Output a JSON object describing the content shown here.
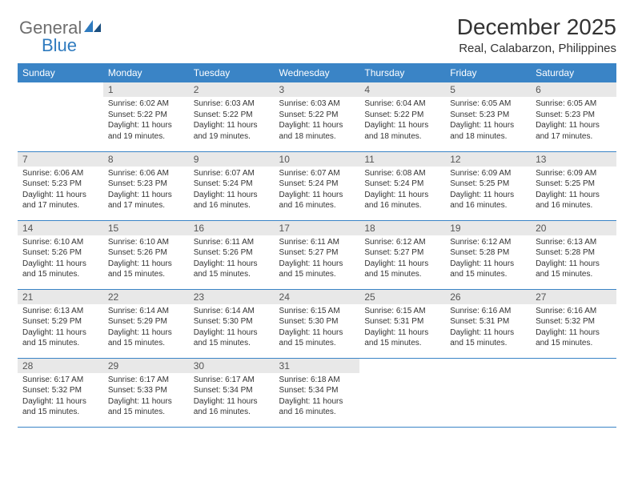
{
  "logo": {
    "general": "General",
    "blue": "Blue"
  },
  "title": "December 2025",
  "location": "Real, Calabarzon, Philippines",
  "colors": {
    "header_bg": "#3a84c6",
    "header_text": "#ffffff",
    "daynum_bg": "#e8e8e8",
    "row_border": "#3a84c6",
    "logo_gray": "#6e6e6e",
    "logo_blue": "#2f7bbf",
    "page_bg": "#ffffff",
    "text": "#333333"
  },
  "typography": {
    "title_fontsize": 28,
    "location_fontsize": 15,
    "weekday_fontsize": 12,
    "daynum_fontsize": 12,
    "cell_fontsize": 10
  },
  "weekdays": [
    "Sunday",
    "Monday",
    "Tuesday",
    "Wednesday",
    "Thursday",
    "Friday",
    "Saturday"
  ],
  "weeks": [
    [
      {
        "n": "",
        "sunrise": "",
        "sunset": "",
        "daylight": ""
      },
      {
        "n": "1",
        "sunrise": "6:02 AM",
        "sunset": "5:22 PM",
        "daylight": "11 hours and 19 minutes."
      },
      {
        "n": "2",
        "sunrise": "6:03 AM",
        "sunset": "5:22 PM",
        "daylight": "11 hours and 19 minutes."
      },
      {
        "n": "3",
        "sunrise": "6:03 AM",
        "sunset": "5:22 PM",
        "daylight": "11 hours and 18 minutes."
      },
      {
        "n": "4",
        "sunrise": "6:04 AM",
        "sunset": "5:22 PM",
        "daylight": "11 hours and 18 minutes."
      },
      {
        "n": "5",
        "sunrise": "6:05 AM",
        "sunset": "5:23 PM",
        "daylight": "11 hours and 18 minutes."
      },
      {
        "n": "6",
        "sunrise": "6:05 AM",
        "sunset": "5:23 PM",
        "daylight": "11 hours and 17 minutes."
      }
    ],
    [
      {
        "n": "7",
        "sunrise": "6:06 AM",
        "sunset": "5:23 PM",
        "daylight": "11 hours and 17 minutes."
      },
      {
        "n": "8",
        "sunrise": "6:06 AM",
        "sunset": "5:23 PM",
        "daylight": "11 hours and 17 minutes."
      },
      {
        "n": "9",
        "sunrise": "6:07 AM",
        "sunset": "5:24 PM",
        "daylight": "11 hours and 16 minutes."
      },
      {
        "n": "10",
        "sunrise": "6:07 AM",
        "sunset": "5:24 PM",
        "daylight": "11 hours and 16 minutes."
      },
      {
        "n": "11",
        "sunrise": "6:08 AM",
        "sunset": "5:24 PM",
        "daylight": "11 hours and 16 minutes."
      },
      {
        "n": "12",
        "sunrise": "6:09 AM",
        "sunset": "5:25 PM",
        "daylight": "11 hours and 16 minutes."
      },
      {
        "n": "13",
        "sunrise": "6:09 AM",
        "sunset": "5:25 PM",
        "daylight": "11 hours and 16 minutes."
      }
    ],
    [
      {
        "n": "14",
        "sunrise": "6:10 AM",
        "sunset": "5:26 PM",
        "daylight": "11 hours and 15 minutes."
      },
      {
        "n": "15",
        "sunrise": "6:10 AM",
        "sunset": "5:26 PM",
        "daylight": "11 hours and 15 minutes."
      },
      {
        "n": "16",
        "sunrise": "6:11 AM",
        "sunset": "5:26 PM",
        "daylight": "11 hours and 15 minutes."
      },
      {
        "n": "17",
        "sunrise": "6:11 AM",
        "sunset": "5:27 PM",
        "daylight": "11 hours and 15 minutes."
      },
      {
        "n": "18",
        "sunrise": "6:12 AM",
        "sunset": "5:27 PM",
        "daylight": "11 hours and 15 minutes."
      },
      {
        "n": "19",
        "sunrise": "6:12 AM",
        "sunset": "5:28 PM",
        "daylight": "11 hours and 15 minutes."
      },
      {
        "n": "20",
        "sunrise": "6:13 AM",
        "sunset": "5:28 PM",
        "daylight": "11 hours and 15 minutes."
      }
    ],
    [
      {
        "n": "21",
        "sunrise": "6:13 AM",
        "sunset": "5:29 PM",
        "daylight": "11 hours and 15 minutes."
      },
      {
        "n": "22",
        "sunrise": "6:14 AM",
        "sunset": "5:29 PM",
        "daylight": "11 hours and 15 minutes."
      },
      {
        "n": "23",
        "sunrise": "6:14 AM",
        "sunset": "5:30 PM",
        "daylight": "11 hours and 15 minutes."
      },
      {
        "n": "24",
        "sunrise": "6:15 AM",
        "sunset": "5:30 PM",
        "daylight": "11 hours and 15 minutes."
      },
      {
        "n": "25",
        "sunrise": "6:15 AM",
        "sunset": "5:31 PM",
        "daylight": "11 hours and 15 minutes."
      },
      {
        "n": "26",
        "sunrise": "6:16 AM",
        "sunset": "5:31 PM",
        "daylight": "11 hours and 15 minutes."
      },
      {
        "n": "27",
        "sunrise": "6:16 AM",
        "sunset": "5:32 PM",
        "daylight": "11 hours and 15 minutes."
      }
    ],
    [
      {
        "n": "28",
        "sunrise": "6:17 AM",
        "sunset": "5:32 PM",
        "daylight": "11 hours and 15 minutes."
      },
      {
        "n": "29",
        "sunrise": "6:17 AM",
        "sunset": "5:33 PM",
        "daylight": "11 hours and 15 minutes."
      },
      {
        "n": "30",
        "sunrise": "6:17 AM",
        "sunset": "5:34 PM",
        "daylight": "11 hours and 16 minutes."
      },
      {
        "n": "31",
        "sunrise": "6:18 AM",
        "sunset": "5:34 PM",
        "daylight": "11 hours and 16 minutes."
      },
      {
        "n": "",
        "sunrise": "",
        "sunset": "",
        "daylight": ""
      },
      {
        "n": "",
        "sunrise": "",
        "sunset": "",
        "daylight": ""
      },
      {
        "n": "",
        "sunrise": "",
        "sunset": "",
        "daylight": ""
      }
    ]
  ],
  "labels": {
    "sunrise": "Sunrise:",
    "sunset": "Sunset:",
    "daylight": "Daylight:"
  }
}
